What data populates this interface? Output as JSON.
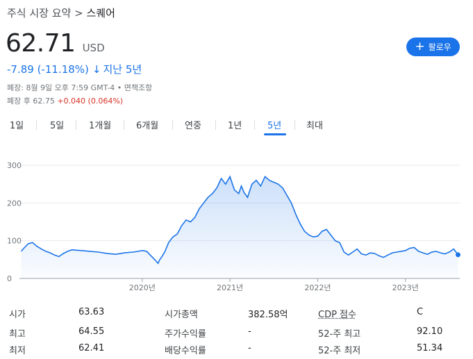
{
  "breadcrumb": {
    "root": "주식 시장 요약",
    "separator": ">",
    "current": "스퀘어"
  },
  "quote": {
    "price": "62.71",
    "currency": "USD",
    "change": "-7.89 (-11.18%)",
    "change_arrow": "↓",
    "period": "지난 5년",
    "close_info": "폐장: 8월 9일 오후 7:59 GMT-4 • 면책조항",
    "after_hours_label": "폐장 후 62.75",
    "after_hours_delta": "+0.040 (0.064%)"
  },
  "follow_button": {
    "label": "팔로우",
    "icon": "+"
  },
  "tabs": [
    {
      "label": "1일",
      "active": false
    },
    {
      "label": "5일",
      "active": false
    },
    {
      "label": "1개월",
      "active": false
    },
    {
      "label": "6개월",
      "active": false
    },
    {
      "label": "연중",
      "active": false
    },
    {
      "label": "1년",
      "active": false
    },
    {
      "label": "5년",
      "active": true
    },
    {
      "label": "최대",
      "active": false
    }
  ],
  "colors": {
    "accent": "#1a73e8",
    "negative": "#d93025",
    "line": "#1a73e8",
    "grid": "#e8eaed"
  },
  "chart_data": {
    "type": "area",
    "yticks": [
      0,
      100,
      200,
      300
    ],
    "ylim": [
      0,
      300
    ],
    "xticks": [
      {
        "label": "2020년",
        "year": 2020.0
      },
      {
        "label": "2021년",
        "year": 2021.0
      },
      {
        "label": "2022년",
        "year": 2022.0
      },
      {
        "label": "2023년",
        "year": 2023.0
      }
    ],
    "x": [
      2018.62,
      2018.65,
      2018.7,
      2018.75,
      2018.8,
      2018.85,
      2018.9,
      2018.95,
      2019.0,
      2019.05,
      2019.1,
      2019.15,
      2019.2,
      2019.25,
      2019.3,
      2019.35,
      2019.4,
      2019.5,
      2019.6,
      2019.7,
      2019.8,
      2019.9,
      2020.0,
      2020.05,
      2020.1,
      2020.15,
      2020.18,
      2020.2,
      2020.23,
      2020.26,
      2020.3,
      2020.35,
      2020.4,
      2020.45,
      2020.5,
      2020.55,
      2020.6,
      2020.65,
      2020.7,
      2020.75,
      2020.8,
      2020.85,
      2020.9,
      2020.95,
      2021.0,
      2021.05,
      2021.1,
      2021.13,
      2021.16,
      2021.2,
      2021.25,
      2021.3,
      2021.35,
      2021.4,
      2021.45,
      2021.5,
      2021.55,
      2021.6,
      2021.65,
      2021.7,
      2021.75,
      2021.8,
      2021.85,
      2021.9,
      2021.95,
      2022.0,
      2022.05,
      2022.1,
      2022.15,
      2022.2,
      2022.25,
      2022.3,
      2022.35,
      2022.4,
      2022.45,
      2022.5,
      2022.55,
      2022.6,
      2022.65,
      2022.7,
      2022.75,
      2022.8,
      2022.85,
      2022.9,
      2022.95,
      2023.0,
      2023.05,
      2023.1,
      2023.15,
      2023.2,
      2023.25,
      2023.3,
      2023.35,
      2023.4,
      2023.45,
      2023.5,
      2023.55,
      2023.6
    ],
    "values": [
      72,
      80,
      92,
      95,
      85,
      78,
      72,
      68,
      62,
      58,
      66,
      72,
      76,
      75,
      74,
      73,
      72,
      70,
      66,
      64,
      68,
      70,
      74,
      72,
      60,
      48,
      40,
      50,
      60,
      72,
      95,
      110,
      118,
      140,
      155,
      150,
      162,
      185,
      200,
      215,
      225,
      240,
      265,
      250,
      270,
      235,
      225,
      245,
      228,
      215,
      250,
      260,
      245,
      270,
      260,
      255,
      250,
      240,
      220,
      200,
      170,
      145,
      125,
      115,
      110,
      112,
      125,
      130,
      115,
      100,
      95,
      70,
      62,
      70,
      78,
      65,
      62,
      68,
      66,
      60,
      56,
      62,
      68,
      70,
      72,
      74,
      80,
      82,
      72,
      68,
      64,
      70,
      72,
      68,
      65,
      70,
      78,
      62.71
    ]
  },
  "stats": [
    [
      {
        "label": "시가",
        "value": "63.63"
      },
      {
        "label": "시가총액",
        "value": "382.58억"
      },
      {
        "label": "CDP 점수",
        "value": "C"
      }
    ],
    [
      {
        "label": "최고",
        "value": "64.55"
      },
      {
        "label": "주가수익률",
        "value": "-"
      },
      {
        "label": "52-주 최고",
        "value": "92.10"
      }
    ],
    [
      {
        "label": "최저",
        "value": "62.41"
      },
      {
        "label": "배당수익률",
        "value": "-"
      },
      {
        "label": "52-주 최저",
        "value": "51.34"
      }
    ]
  ]
}
